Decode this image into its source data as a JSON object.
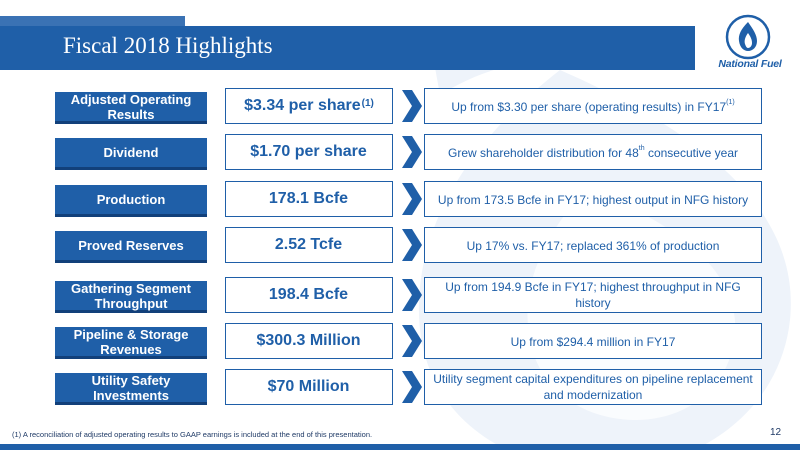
{
  "slide": {
    "title": "Fiscal 2018 Highlights",
    "logo_text": "National Fuel",
    "page_number": "12",
    "footnote": "(1)   A reconciliation of adjusted operating results to GAAP earnings is included at the end of this presentation.",
    "colors": {
      "brand_blue": "#1f5fa8",
      "dark_blue": "#12407a",
      "watermark": "#e6eef8"
    }
  },
  "rows": [
    {
      "label": "Adjusted Operating Results",
      "value": "$3.34 per share",
      "value_sup": "(1)",
      "desc": "Up from $3.30 per share (operating results) in FY17",
      "desc_sup": "(1)",
      "desc_after": ""
    },
    {
      "label": "Dividend",
      "value": "$1.70 per share",
      "value_sup": "",
      "desc": "Grew shareholder distribution for 48",
      "desc_sup": "th",
      "desc_after": " consecutive year"
    },
    {
      "label": "Production",
      "value": "178.1 Bcfe",
      "value_sup": "",
      "desc": "Up from 173.5 Bcfe in FY17; highest output in NFG history",
      "desc_sup": "",
      "desc_after": ""
    },
    {
      "label": "Proved Reserves",
      "value": "2.52 Tcfe",
      "value_sup": "",
      "desc": "Up 17% vs. FY17; replaced 361% of production",
      "desc_sup": "",
      "desc_after": ""
    },
    {
      "label": "Gathering Segment Throughput",
      "value": "198.4 Bcfe",
      "value_sup": "",
      "desc": "Up from 194.9 Bcfe in FY17; highest throughput in NFG history",
      "desc_sup": "",
      "desc_after": ""
    },
    {
      "label": "Pipeline & Storage Revenues",
      "value": "$300.3 Million",
      "value_sup": "",
      "desc": "Up from $294.4 million in FY17",
      "desc_sup": "",
      "desc_after": ""
    },
    {
      "label": "Utility Safety Investments",
      "value": "$70 Million",
      "value_sup": "",
      "desc": "Utility segment capital expenditures on pipeline replacement and modernization",
      "desc_sup": "",
      "desc_after": ""
    }
  ]
}
